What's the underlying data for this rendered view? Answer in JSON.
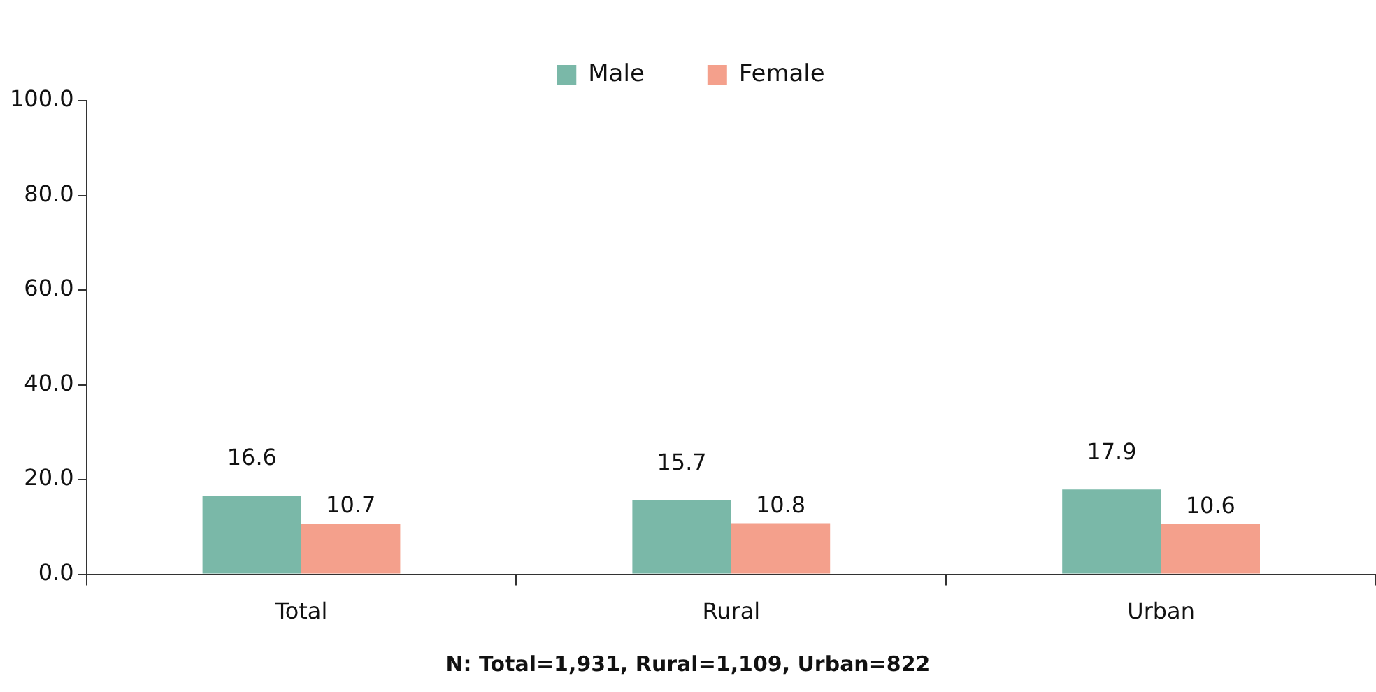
{
  "chart_data": {
    "type": "bar",
    "categories": [
      "Total",
      "Rural",
      "Urban"
    ],
    "series": [
      {
        "name": "Male",
        "color": "#7ab8a8",
        "values": [
          16.6,
          15.7,
          17.9
        ]
      },
      {
        "name": "Female",
        "color": "#f4a08c",
        "values": [
          10.7,
          10.8,
          10.6
        ]
      }
    ],
    "ylim": [
      0,
      100
    ],
    "yticks": [
      {
        "value": 0,
        "label": "0.0"
      },
      {
        "value": 20,
        "label": "20.0"
      },
      {
        "value": 40,
        "label": "40.0"
      },
      {
        "value": 60,
        "label": "60.0"
      },
      {
        "value": 80,
        "label": "80.0"
      },
      {
        "value": 100,
        "label": "100.0"
      }
    ],
    "data_labels": true,
    "grid": false,
    "legend": "top",
    "annotations": [
      "N: Total=1,931, Rural=1,109, Urban=822"
    ]
  }
}
